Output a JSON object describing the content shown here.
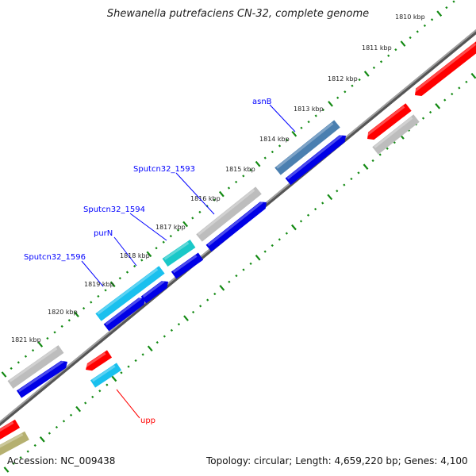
{
  "title": "Shewanella putrefaciens CN-32, complete genome",
  "footer": {
    "accession": "Accession: NC_009438",
    "info": "Topology: circular; Length: 4,659,220 bp; Genes: 4,100"
  },
  "kbp_labels": [
    "1810 kbp",
    "1811 kbp",
    "1812 kbp",
    "1813 kbp",
    "1814 kbp",
    "1815 kbp",
    "1816 kbp",
    "1817 kbp",
    "1818 kbp",
    "1819 kbp",
    "1820 kbp",
    "1821 kbp"
  ],
  "gene_labels": [
    {
      "name": "asnB",
      "color": "#0000ff"
    },
    {
      "name": "Sputcn32_1593",
      "color": "#0000ff"
    },
    {
      "name": "Sputcn32_1594",
      "color": "#0000ff"
    },
    {
      "name": "purN",
      "color": "#0000ff"
    },
    {
      "name": "Sputcn32_1596",
      "color": "#0000ff"
    },
    {
      "name": "upp",
      "color": "#ff0000"
    }
  ],
  "colors": {
    "backbone": "#808080",
    "ticks": "#138a13",
    "cds": "#0000e6",
    "rna_red": "#ff0000",
    "gray": "#bdbdbd",
    "steelblue": "#4a7fb0",
    "cyan": "#19c0ee",
    "teal": "#1ac8c8",
    "olive": "#b5b070"
  }
}
